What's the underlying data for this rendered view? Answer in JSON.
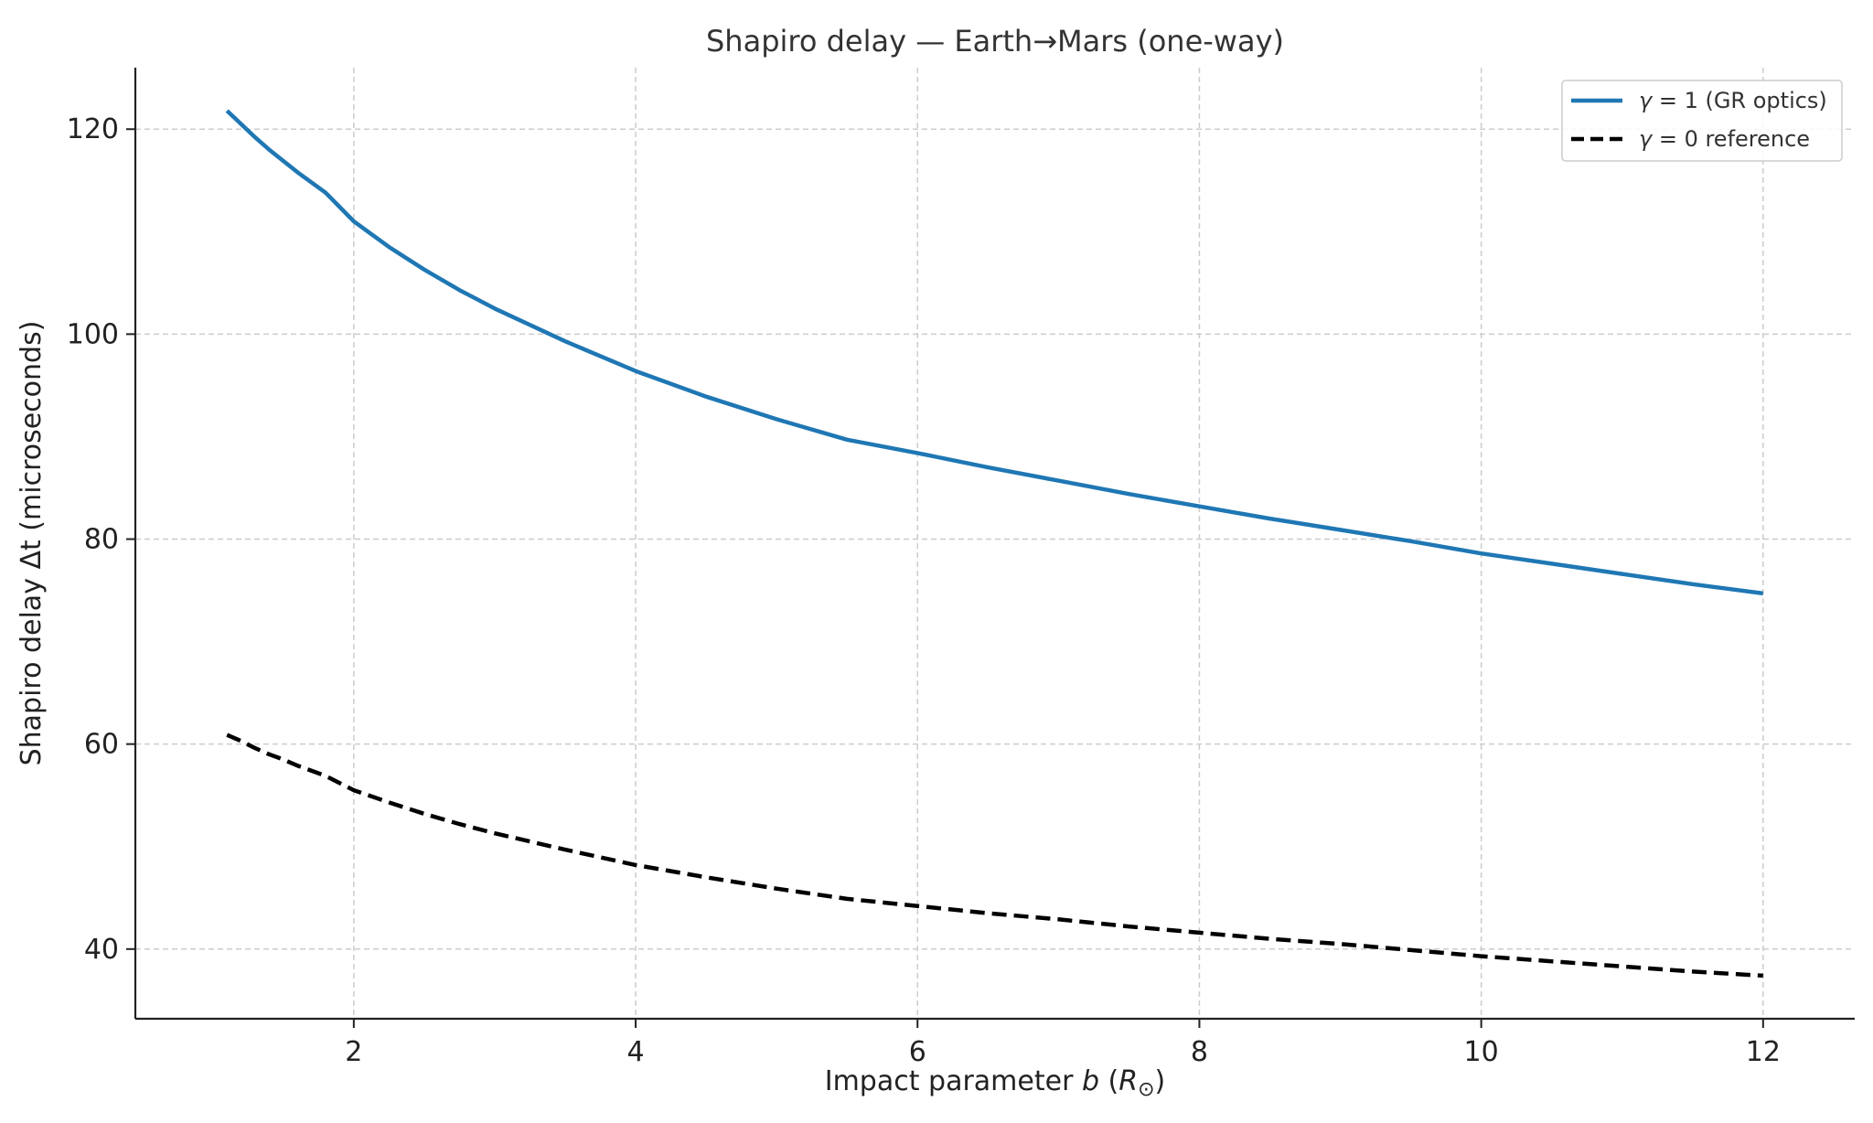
{
  "chart_data": {
    "type": "line",
    "title": "Shapiro delay — Earth→Mars (one-way)",
    "xlabel": "Impact parameter b (R⊙)",
    "xlabel_parts": {
      "prefix": "Impact parameter ",
      "var": "b",
      "open": " (",
      "unit": "R",
      "sub": "⊙",
      "close": ")"
    },
    "ylabel": "Shapiro delay Δt (microseconds)",
    "xlim": [
      0.45,
      12.65
    ],
    "ylim": [
      33.2,
      126.0
    ],
    "xticks": [
      2,
      4,
      6,
      8,
      10,
      12
    ],
    "yticks": [
      40,
      60,
      80,
      100,
      120
    ],
    "grid": true,
    "legend_position": "top-right",
    "x": [
      1.1,
      1.2,
      1.3,
      1.4,
      1.5,
      1.6,
      1.8,
      2,
      2.25,
      2.5,
      2.75,
      3,
      3.5,
      4,
      4.5,
      5,
      5.5,
      6,
      6.5,
      7,
      7.5,
      8,
      8.5,
      9,
      9.5,
      10,
      10.5,
      11,
      11.5,
      12
    ],
    "series": [
      {
        "name": "γ = 1 (GR optics)",
        "legend_parts": {
          "var": "γ",
          "rest": " = 1 (GR optics)"
        },
        "color": "#1f77b4",
        "style": "solid",
        "values": [
          121.8,
          120.5,
          119.2,
          118.0,
          116.9,
          115.8,
          113.8,
          111.0,
          108.5,
          106.3,
          104.3,
          102.5,
          99.3,
          96.4,
          93.9,
          91.7,
          89.7,
          88.4,
          87.0,
          85.7,
          84.4,
          83.2,
          82.0,
          80.9,
          79.8,
          78.6,
          77.6,
          76.6,
          75.6,
          74.7
        ]
      },
      {
        "name": "γ = 0 reference",
        "legend_parts": {
          "var": "γ",
          "rest": " = 0 reference"
        },
        "color": "#000000",
        "style": "dashed",
        "values": [
          60.9,
          60.3,
          59.6,
          59.0,
          58.5,
          57.9,
          56.9,
          55.5,
          54.3,
          53.2,
          52.2,
          51.3,
          49.7,
          48.2,
          47.0,
          45.9,
          44.9,
          44.2,
          43.5,
          42.9,
          42.2,
          41.6,
          41.0,
          40.5,
          39.9,
          39.3,
          38.8,
          38.3,
          37.8,
          37.4
        ]
      }
    ]
  }
}
